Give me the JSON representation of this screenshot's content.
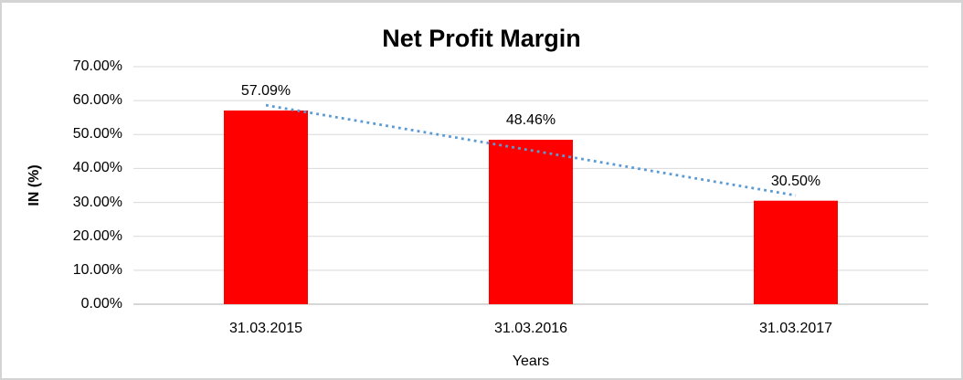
{
  "chart_data": {
    "type": "bar",
    "title": "Net Profit Margin",
    "categories": [
      "31.03.2015",
      "31.03.2016",
      "31.03.2017"
    ],
    "values": [
      57.09,
      48.46,
      30.5
    ],
    "value_labels": [
      "57.09%",
      "48.46%",
      "30.50%"
    ],
    "xlabel": "Years",
    "ylabel": "IN (%)",
    "ylim": [
      0,
      70
    ],
    "ytick_step": 10,
    "ytick_labels": [
      "0.00%",
      "10.00%",
      "20.00%",
      "30.00%",
      "40.00%",
      "50.00%",
      "60.00%",
      "70.00%"
    ],
    "grid": true,
    "legend": "none",
    "trendline": {
      "type": "linear",
      "style": "dotted",
      "color": "#5B9BD5"
    },
    "bar_color": "#FF0000",
    "gridline_color": "#D9D9D9",
    "axis_line_color": "#BFBFBF",
    "text_color": "#000000"
  }
}
